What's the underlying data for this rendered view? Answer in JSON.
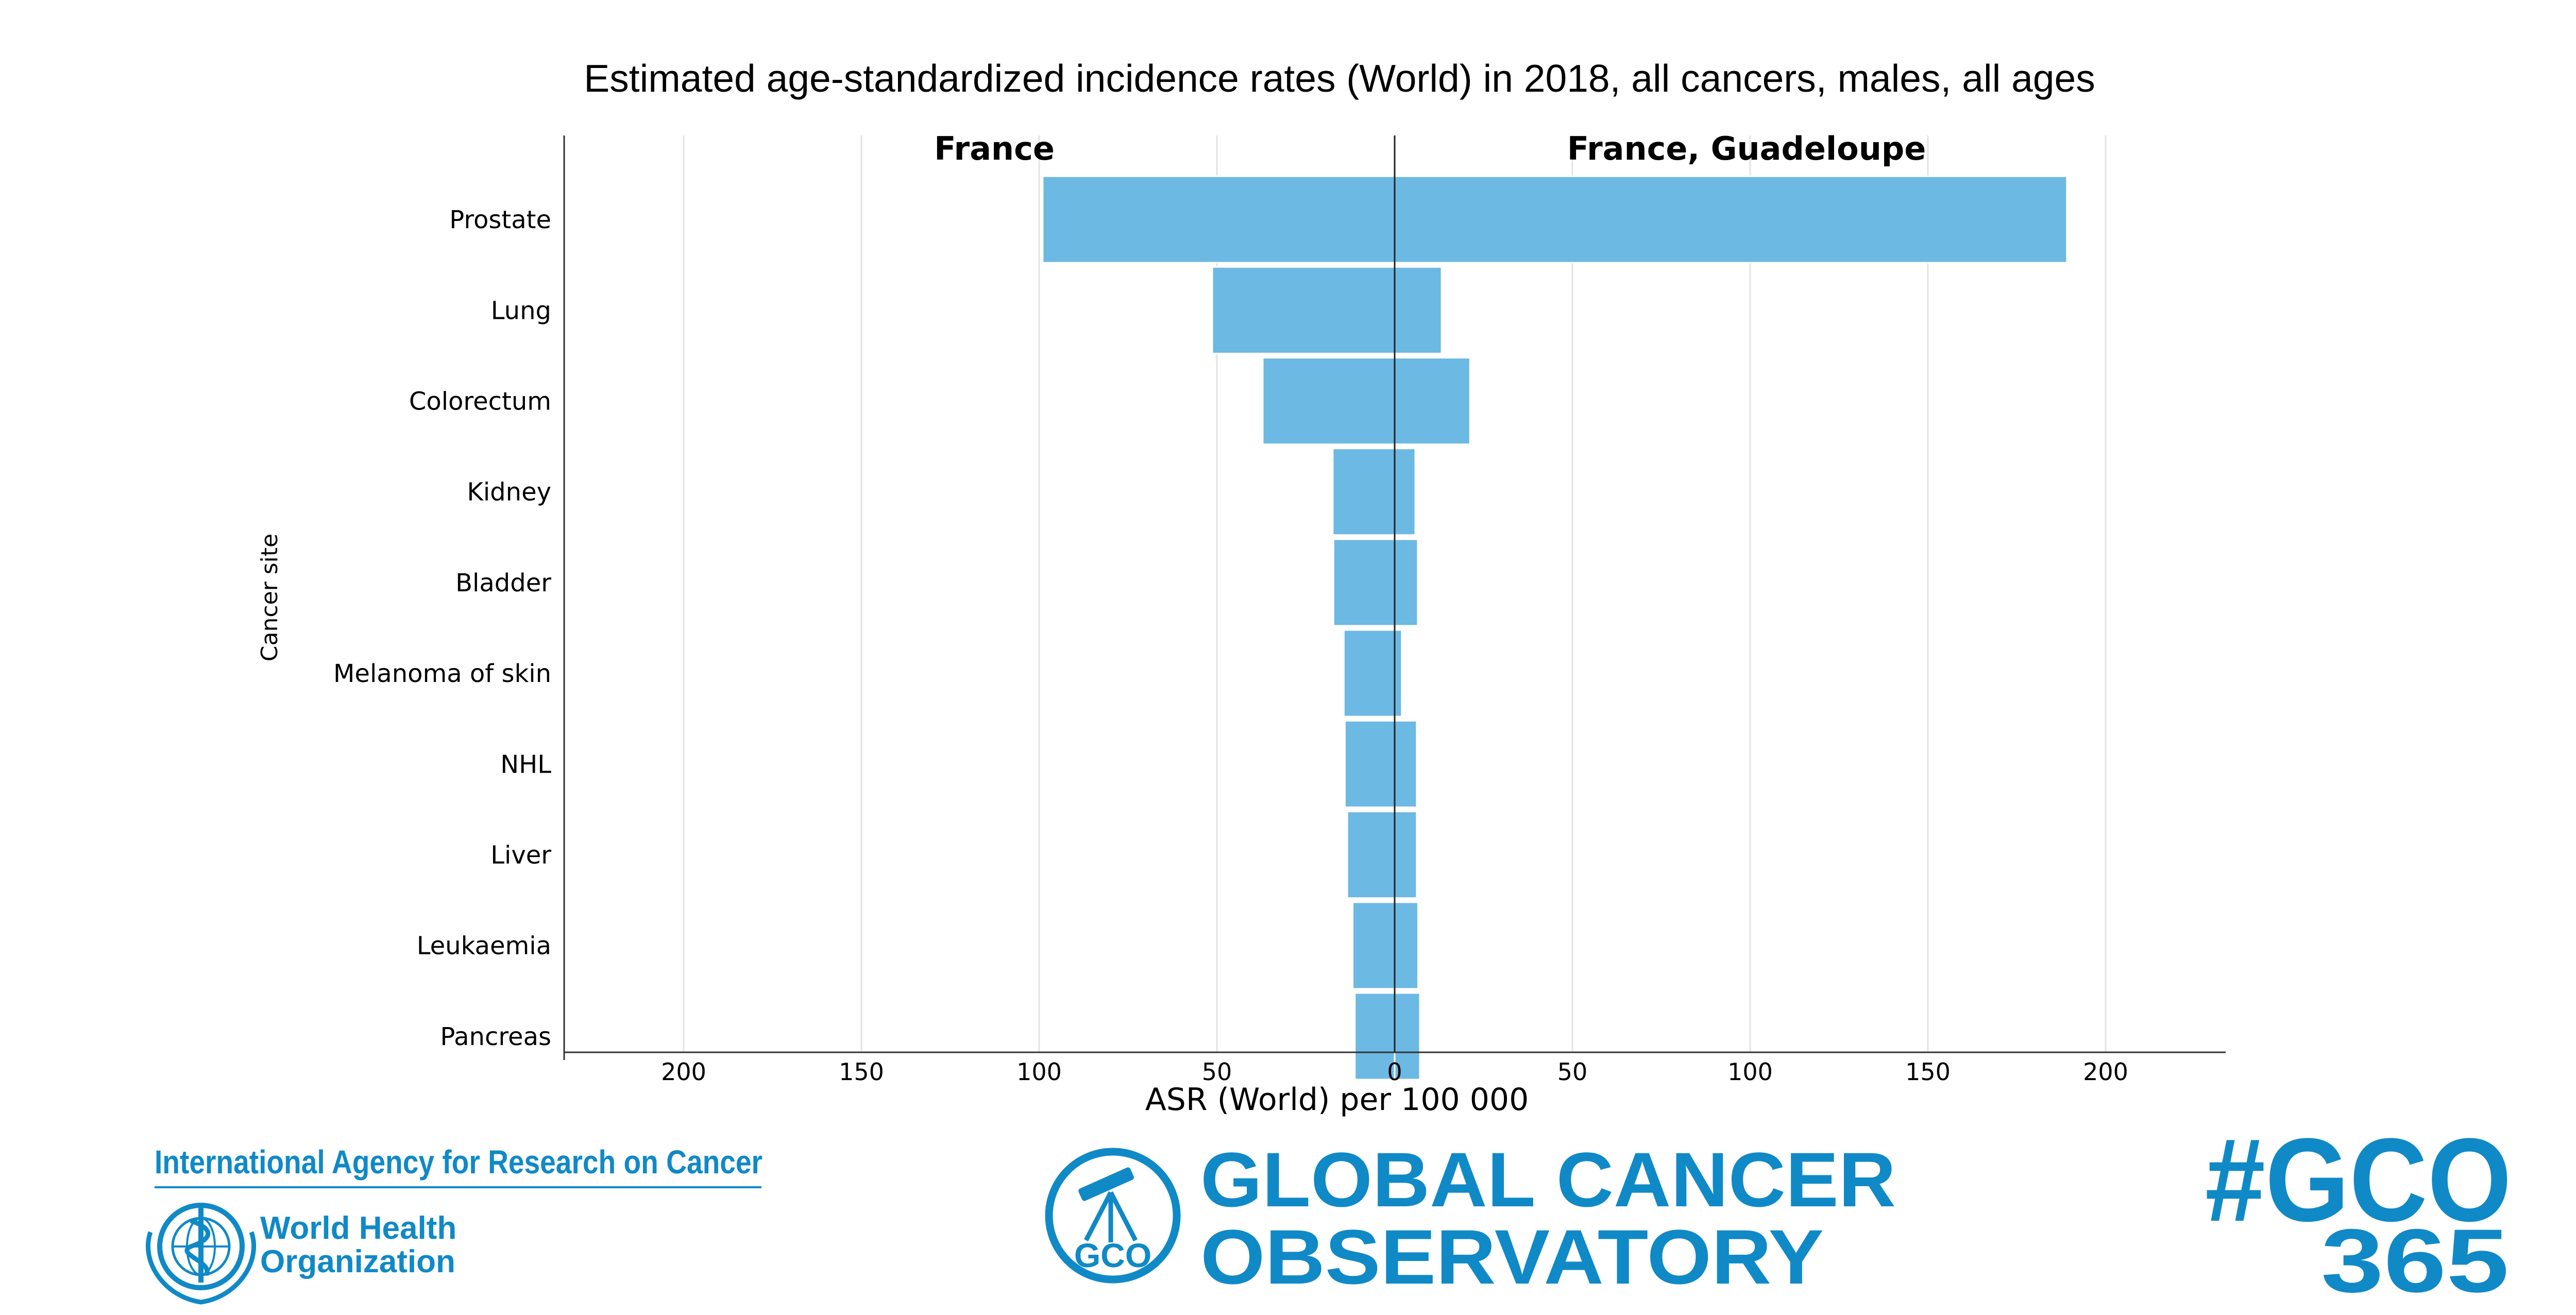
{
  "chart_data": {
    "type": "bar",
    "orientation": "horizontal-back-to-back",
    "title": "Estimated age-standardized incidence rates (World) in 2018, all cancers, males, all ages",
    "xlabel": "ASR (World) per 100 000",
    "ylabel": "Cancer site",
    "categories": [
      "Prostate",
      "Lung",
      "Colorectum",
      "Kidney",
      "Bladder",
      "Melanoma of skin",
      "NHL",
      "Liver",
      "Leukaemia",
      "Pancreas"
    ],
    "series": [
      {
        "name": "France",
        "side": "left",
        "values": [
          99.0,
          51.3,
          37.1,
          17.4,
          17.2,
          14.3,
          14.0,
          13.3,
          11.8,
          11.2
        ]
      },
      {
        "name": "France, Guadeloupe",
        "side": "right",
        "values": [
          189.1,
          13.2,
          21.2,
          5.8,
          6.5,
          2.0,
          6.2,
          6.2,
          6.6,
          7.1
        ]
      }
    ],
    "xlim": [
      -225,
      225
    ],
    "ticks": [
      -200,
      -150,
      -100,
      -50,
      0,
      50,
      100,
      150,
      200
    ],
    "tick_labels": [
      "200",
      "150",
      "100",
      "50",
      "0",
      "50",
      "100",
      "150",
      "200"
    ],
    "grid": true,
    "bar_color": "#6cb9e3"
  },
  "logos": {
    "iarc": "International Agency for Research on Cancer",
    "who_line1": "World Health",
    "who_line2": "Organization",
    "gco_badge": "GCO",
    "gco_line1": "GLOBAL CANCER",
    "gco_line2": "OBSERVATORY",
    "hashtag_line1": "#GCO",
    "hashtag_line2": "365",
    "brand_color": "#1089c7"
  }
}
